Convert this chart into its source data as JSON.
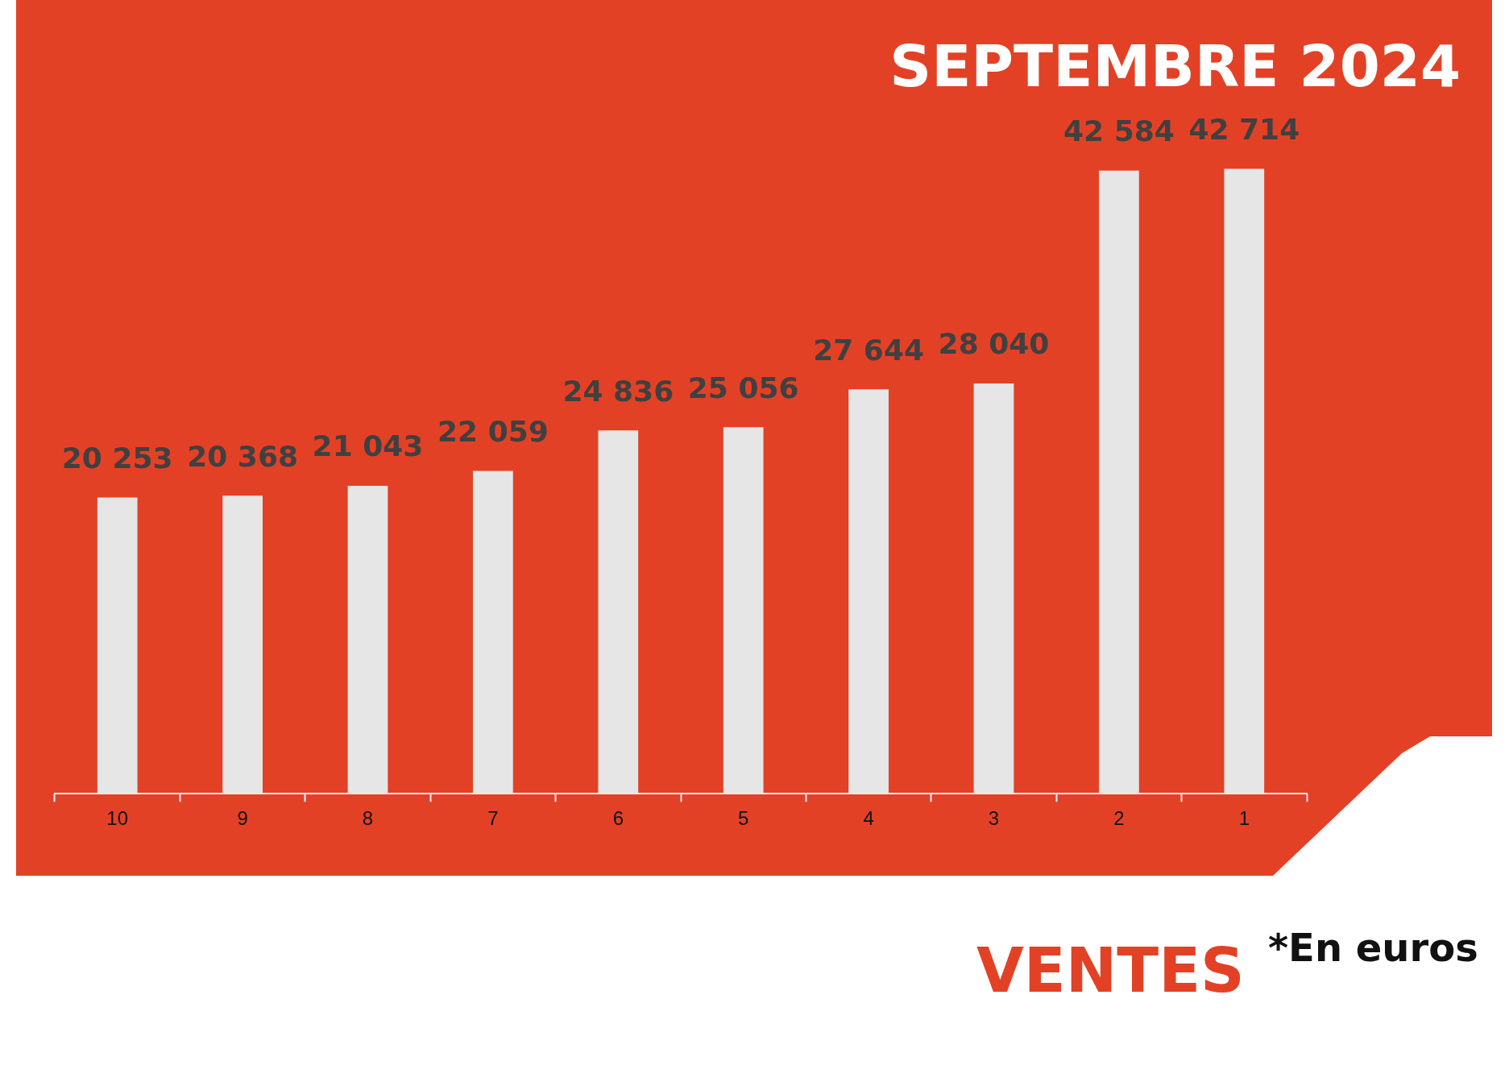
{
  "chart_data": {
    "type": "bar",
    "title": "SEPTEMBRE 2024",
    "annotations": [
      "VENTES",
      "*En euros"
    ],
    "categories": [
      "10",
      "9",
      "8",
      "7",
      "6",
      "5",
      "4",
      "3",
      "2",
      "1"
    ],
    "values": [
      20253,
      20368,
      21043,
      22059,
      24836,
      25056,
      27644,
      28040,
      42584,
      42714
    ],
    "value_labels": [
      "20 253",
      "20 368",
      "21 043",
      "22 059",
      "24 836",
      "25 056",
      "27 644",
      "28 040",
      "42 584",
      "42 714"
    ],
    "color": "#e6e6e6",
    "grid": false,
    "legend": false
  }
}
